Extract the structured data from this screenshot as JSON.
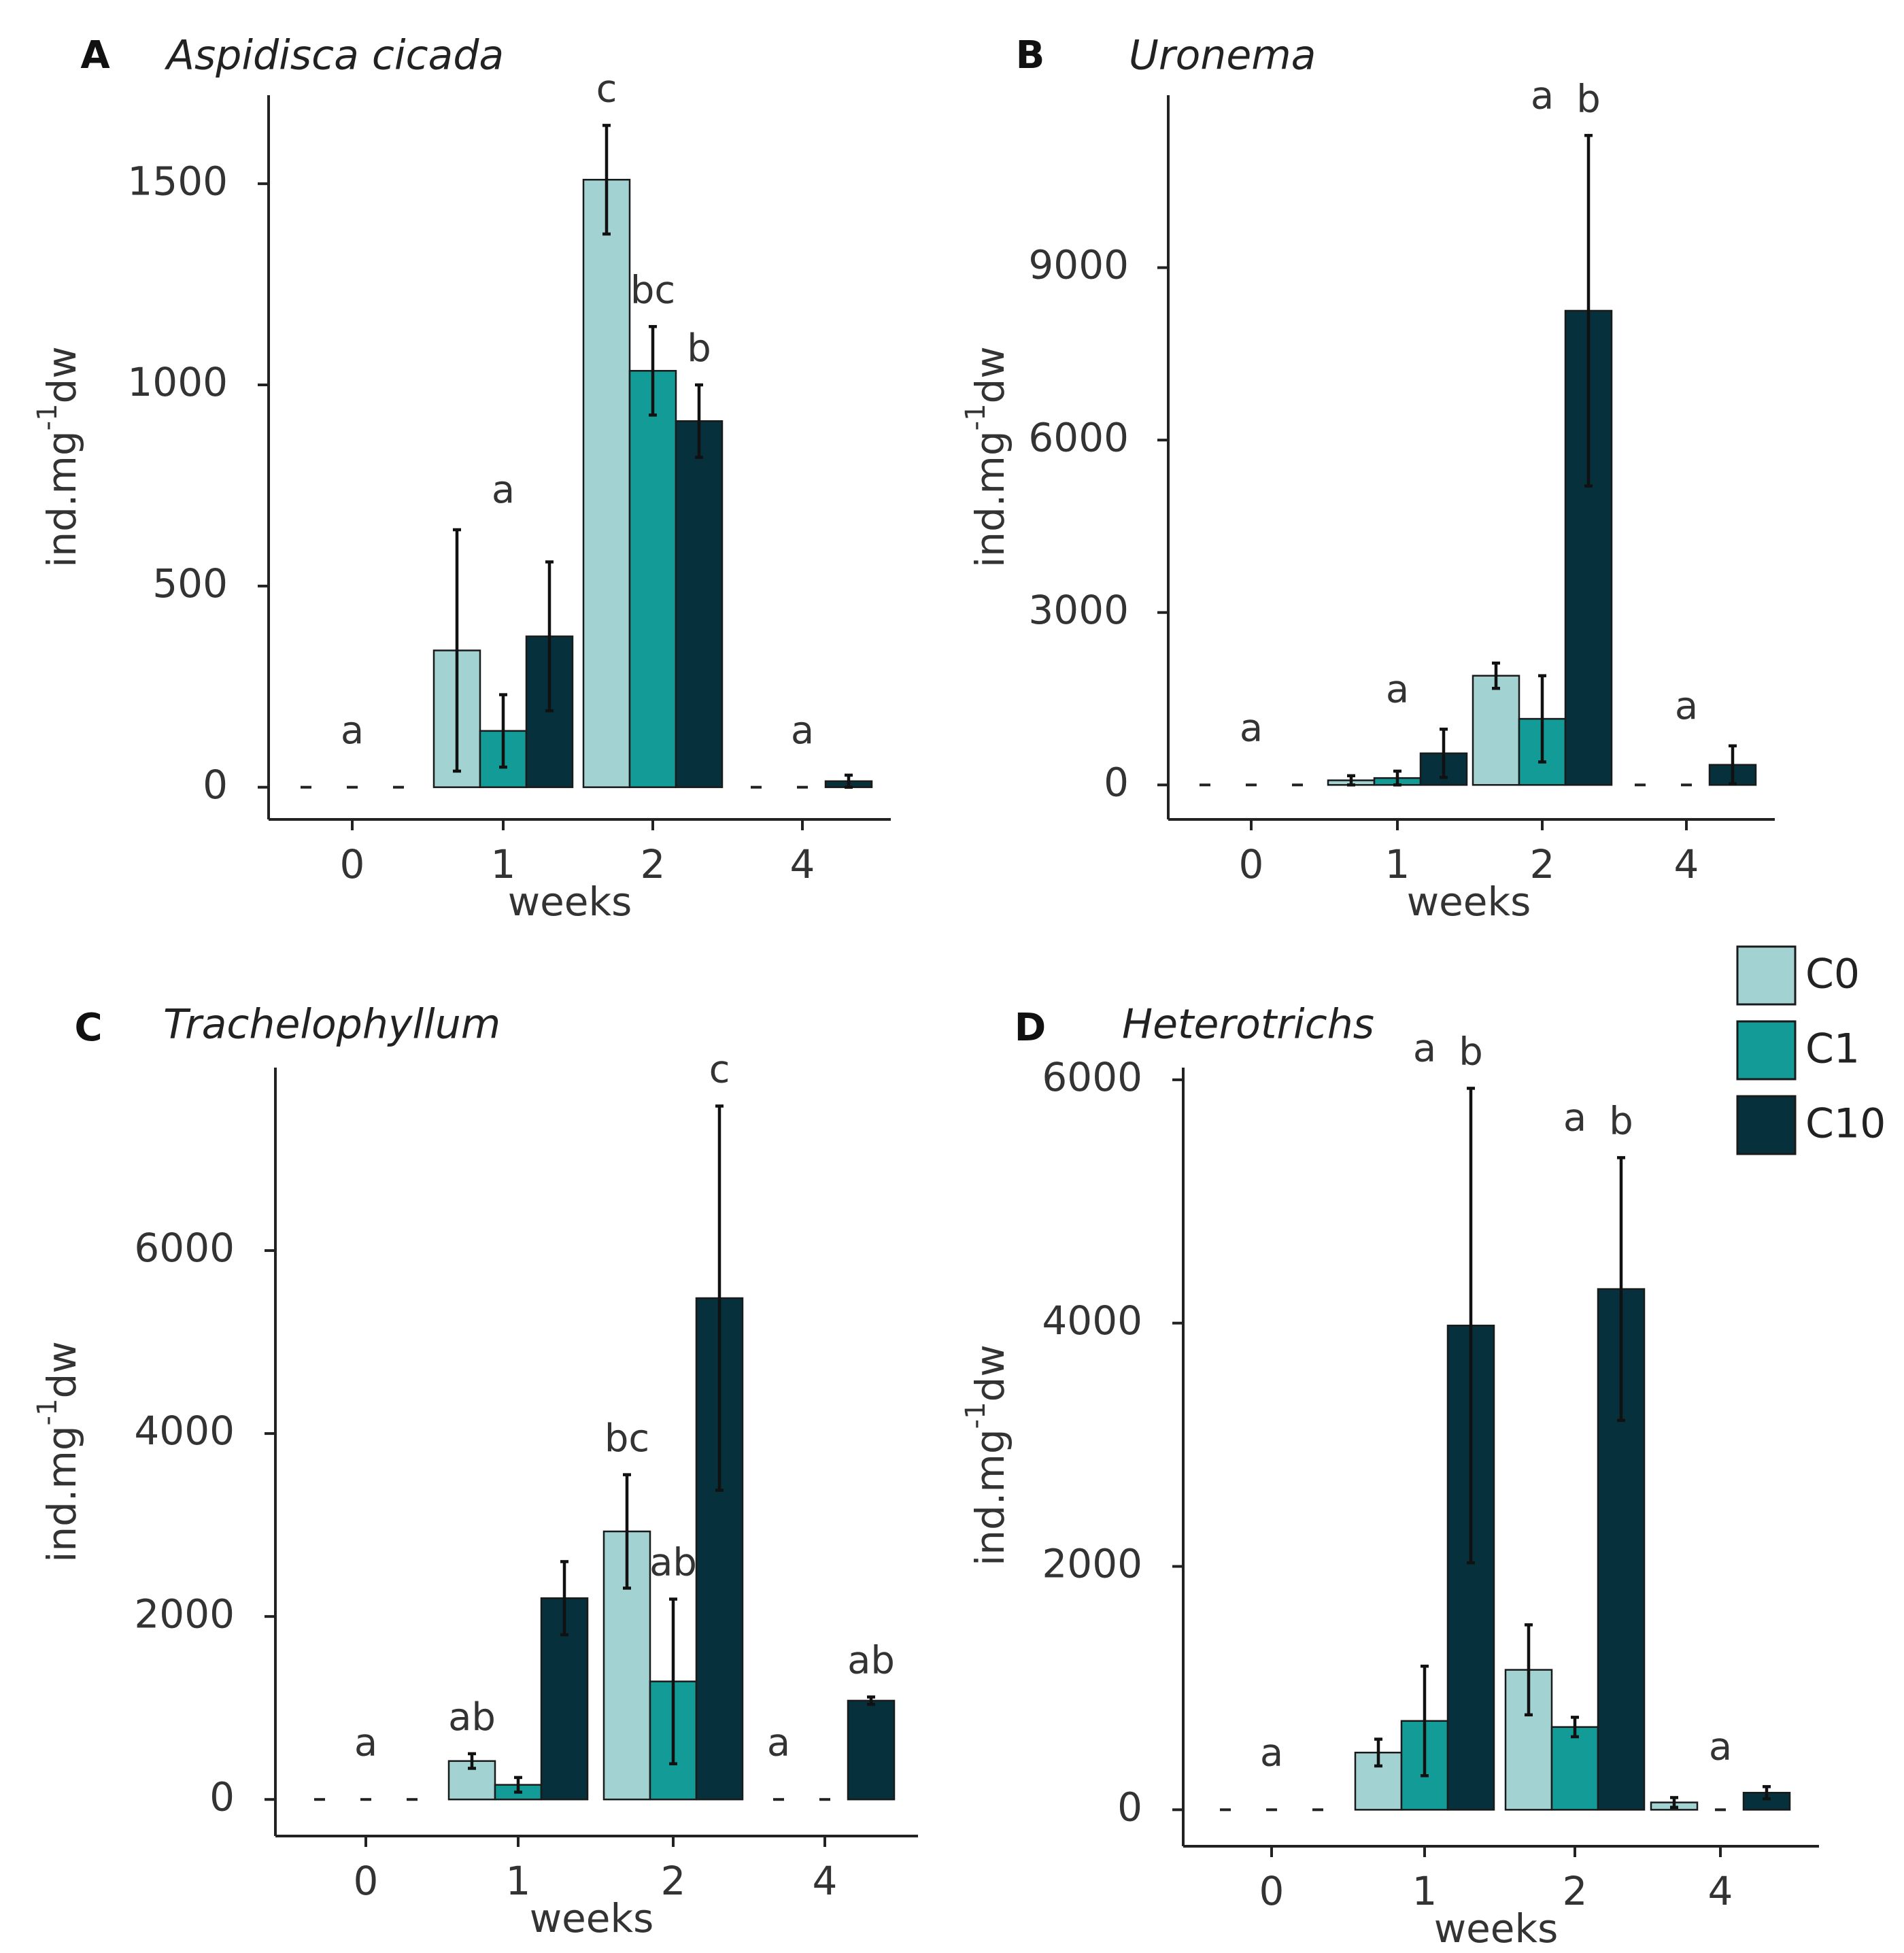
{
  "legend": {
    "items": [
      {
        "name": "C0",
        "color": "#a3d2d3"
      },
      {
        "name": "C1",
        "color": "#139b97"
      },
      {
        "name": "C10",
        "color": "#06313c"
      }
    ]
  },
  "chart_data": [
    {
      "type": "bar",
      "panel": "A",
      "title": "Aspidisca cicada",
      "xlabel": "weeks",
      "ylabel": "ind.mg-1dw",
      "categories": [
        "0",
        "1",
        "2",
        "4"
      ],
      "yticks": [
        0,
        500,
        1000,
        1500
      ],
      "ylim": [
        -80,
        1720
      ],
      "series": [
        {
          "name": "C0",
          "values": [
            0,
            340,
            1510,
            0
          ],
          "errors": [
            null,
            300,
            135,
            null
          ]
        },
        {
          "name": "C1",
          "values": [
            0,
            140,
            1035,
            0
          ],
          "errors": [
            null,
            90,
            110,
            null
          ]
        },
        {
          "name": "C10",
          "values": [
            0,
            375,
            910,
            15
          ],
          "errors": [
            null,
            185,
            90,
            15
          ]
        }
      ],
      "group_labels": [
        "a",
        "a",
        null,
        "a"
      ],
      "bar_labels": [
        {
          "category": "2",
          "series": "C0",
          "label": "c"
        },
        {
          "category": "2",
          "series": "C1",
          "label": "bc"
        },
        {
          "category": "2",
          "series": "C10",
          "label": "b"
        }
      ]
    },
    {
      "type": "bar",
      "panel": "B",
      "title": "Uronema",
      "xlabel": "weeks",
      "ylabel": "ind.mg-1dw",
      "categories": [
        "0",
        "1",
        "2",
        "4"
      ],
      "yticks": [
        0,
        3000,
        6000,
        9000
      ],
      "ylim": [
        -600,
        12000
      ],
      "series": [
        {
          "name": "C0",
          "values": [
            0,
            80,
            1900,
            0
          ],
          "errors": [
            null,
            80,
            220,
            null
          ]
        },
        {
          "name": "C1",
          "values": [
            0,
            120,
            1150,
            0
          ],
          "errors": [
            null,
            120,
            750,
            null
          ]
        },
        {
          "name": "C10",
          "values": [
            0,
            550,
            8250,
            350
          ],
          "errors": [
            null,
            420,
            3050,
            330
          ]
        }
      ],
      "group_labels": [
        "a",
        "a",
        "a",
        "a"
      ],
      "bar_labels": [
        {
          "category": "2",
          "series": "C10",
          "label": "b"
        }
      ]
    },
    {
      "type": "bar",
      "panel": "C",
      "title": "Trachelophyllum",
      "xlabel": "weeks",
      "ylabel": "ind.mg-1dw",
      "categories": [
        "0",
        "1",
        "2",
        "4"
      ],
      "yticks": [
        0,
        2000,
        4000,
        6000
      ],
      "ylim": [
        -400,
        8000
      ],
      "series": [
        {
          "name": "C0",
          "values": [
            0,
            420,
            2930,
            0
          ],
          "errors": [
            null,
            80,
            620,
            null
          ]
        },
        {
          "name": "C1",
          "values": [
            0,
            160,
            1290,
            0
          ],
          "errors": [
            null,
            80,
            900,
            null
          ]
        },
        {
          "name": "C10",
          "values": [
            0,
            2200,
            5480,
            1080
          ],
          "errors": [
            null,
            400,
            2100,
            40
          ]
        }
      ],
      "group_labels": [
        "a",
        null,
        null,
        null
      ],
      "bar_labels": [
        {
          "category": "1",
          "series": "C0",
          "label": "ab"
        },
        {
          "category": "2",
          "series": "C0",
          "label": "bc"
        },
        {
          "category": "2",
          "series": "C1",
          "label": "ab"
        },
        {
          "category": "2",
          "series": "C10",
          "label": "c"
        },
        {
          "category": "4",
          "series": "C0",
          "label": "a"
        },
        {
          "category": "4",
          "series": "C10",
          "label": "ab"
        }
      ]
    },
    {
      "type": "bar",
      "panel": "D",
      "title": "Heterotrichs",
      "xlabel": "weeks",
      "ylabel": "ind.mg-1dw",
      "categories": [
        "0",
        "1",
        "2",
        "4"
      ],
      "yticks": [
        0,
        2000,
        4000,
        6000
      ],
      "ylim": [
        -300,
        6100
      ],
      "series": [
        {
          "name": "C0",
          "values": [
            0,
            470,
            1150,
            60
          ],
          "errors": [
            null,
            110,
            370,
            40
          ]
        },
        {
          "name": "C1",
          "values": [
            0,
            730,
            680,
            0
          ],
          "errors": [
            null,
            450,
            80,
            null
          ]
        },
        {
          "name": "C10",
          "values": [
            0,
            3980,
            4280,
            140
          ],
          "errors": [
            null,
            1950,
            1080,
            50
          ]
        }
      ],
      "group_labels": [
        "a",
        "a",
        "a",
        "a"
      ],
      "bar_labels": [
        {
          "category": "1",
          "series": "C10",
          "label": "b"
        },
        {
          "category": "2",
          "series": "C10",
          "label": "b"
        }
      ]
    }
  ]
}
